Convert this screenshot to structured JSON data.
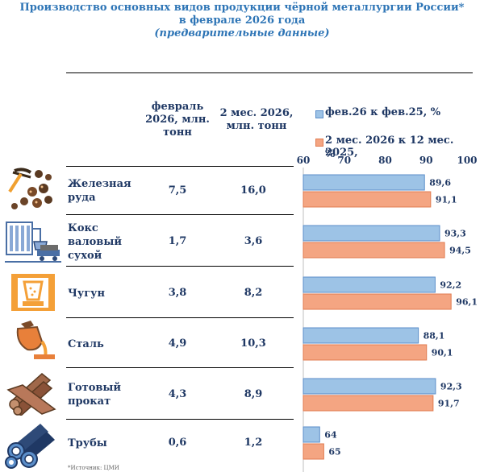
{
  "title": {
    "line1": "Производство основных видов продукции чёрной металлургии России*",
    "line2": "в феврале 2026 года",
    "line3": "(предварительные данные)"
  },
  "columns": {
    "feb": "февраль 2026, млн. тонн",
    "feb_l1": "февраль",
    "feb_l2": "2026, млн.",
    "feb_l3": "тонн",
    "two": "2 мес. 2026, млн. тонн",
    "two_l1": "2 мес. 2026,",
    "two_l2": "млн. тонн"
  },
  "legend": {
    "s1": "фев.26 к фев.25, %",
    "s2_l1": "2 мес. 2026 к 12 мес. 2025,",
    "s2_l2": "%"
  },
  "colors": {
    "blue": "#9dc3e6",
    "blue_border": "#5b8ec9",
    "orange": "#f4a582",
    "orange_border": "#e07b50",
    "text": "#1f3864",
    "title": "#2e75b6"
  },
  "rows": [
    {
      "label_lines": [
        "Железная",
        "руда"
      ],
      "feb": "7,5",
      "two": "16,0",
      "icon": "mining-icon"
    },
    {
      "label_lines": [
        "Кокс",
        "валовый",
        "сухой"
      ],
      "feb": "1,7",
      "two": "3,6",
      "icon": "coke-plant-icon"
    },
    {
      "label_lines": [
        "Чугун"
      ],
      "feb": "3,8",
      "two": "8,2",
      "icon": "cast-iron-icon"
    },
    {
      "label_lines": [
        "Сталь"
      ],
      "feb": "4,9",
      "two": "10,3",
      "icon": "steel-ladle-icon"
    },
    {
      "label_lines": [
        "Готовый",
        "прокат"
      ],
      "feb": "4,3",
      "two": "8,9",
      "icon": "rolled-metal-icon"
    },
    {
      "label_lines": [
        "Трубы"
      ],
      "feb": "0,6",
      "two": "1,2",
      "icon": "pipes-icon"
    }
  ],
  "chart_data": {
    "type": "bar",
    "orientation": "horizontal",
    "categories": [
      "Железная руда",
      "Кокс валовый сухой",
      "Чугун",
      "Сталь",
      "Готовый прокат",
      "Трубы"
    ],
    "series": [
      {
        "name": "фев.26 к фев.25, %",
        "values": [
          89.6,
          93.3,
          92.2,
          88.1,
          92.3,
          64
        ],
        "labels": [
          "89,6",
          "93,3",
          "92,2",
          "88,1",
          "92,3",
          "64"
        ]
      },
      {
        "name": "2 мес. 2026 к 12 мес. 2025, %",
        "values": [
          91.1,
          94.5,
          96.1,
          90.1,
          91.7,
          65
        ],
        "labels": [
          "91,1",
          "94,5",
          "96,1",
          "90,1",
          "91,7",
          "65"
        ]
      }
    ],
    "xlim": [
      60,
      100
    ],
    "xticks": [
      "60",
      "70",
      "80",
      "90",
      "100"
    ],
    "legend_position": "top"
  },
  "footnote": "*Источник: ЦМИ"
}
